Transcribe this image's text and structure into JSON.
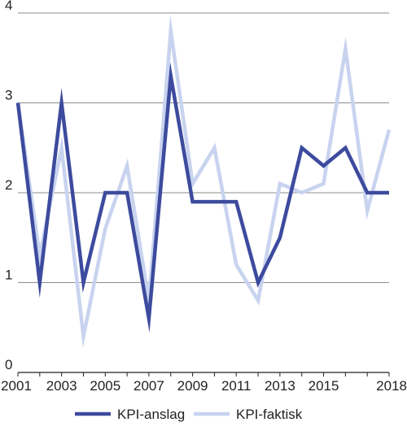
{
  "chart_data": {
    "type": "line",
    "x": [
      2001,
      2002,
      2003,
      2004,
      2005,
      2006,
      2007,
      2008,
      2009,
      2010,
      2011,
      2012,
      2013,
      2014,
      2015,
      2016,
      2017,
      2018
    ],
    "series": [
      {
        "name": "KPI-anslag",
        "color": "#3d4b9e",
        "values": [
          3.0,
          1.0,
          3.0,
          1.0,
          2.0,
          2.0,
          0.6,
          3.3,
          1.9,
          1.9,
          1.9,
          1.0,
          1.5,
          2.5,
          2.3,
          2.5,
          2.0,
          2.0
        ]
      },
      {
        "name": "KPI-faktisk",
        "color": "#c8d3ef",
        "values": [
          3.0,
          1.3,
          2.5,
          0.4,
          1.6,
          2.3,
          0.8,
          3.8,
          2.1,
          2.5,
          1.2,
          0.8,
          2.1,
          2.0,
          2.1,
          3.6,
          1.8,
          2.7
        ]
      }
    ],
    "xticks": [
      "2001",
      "2003",
      "2005",
      "2007",
      "2009",
      "2011",
      "2013",
      "2015",
      "2018"
    ],
    "yticks": [
      "0",
      "1",
      "2",
      "3",
      "4"
    ],
    "xlim": [
      2001,
      2018
    ],
    "ylim": [
      0,
      4
    ],
    "grid": "horizontal",
    "legend_position": "bottom",
    "title": "",
    "xlabel": "",
    "ylabel": ""
  }
}
